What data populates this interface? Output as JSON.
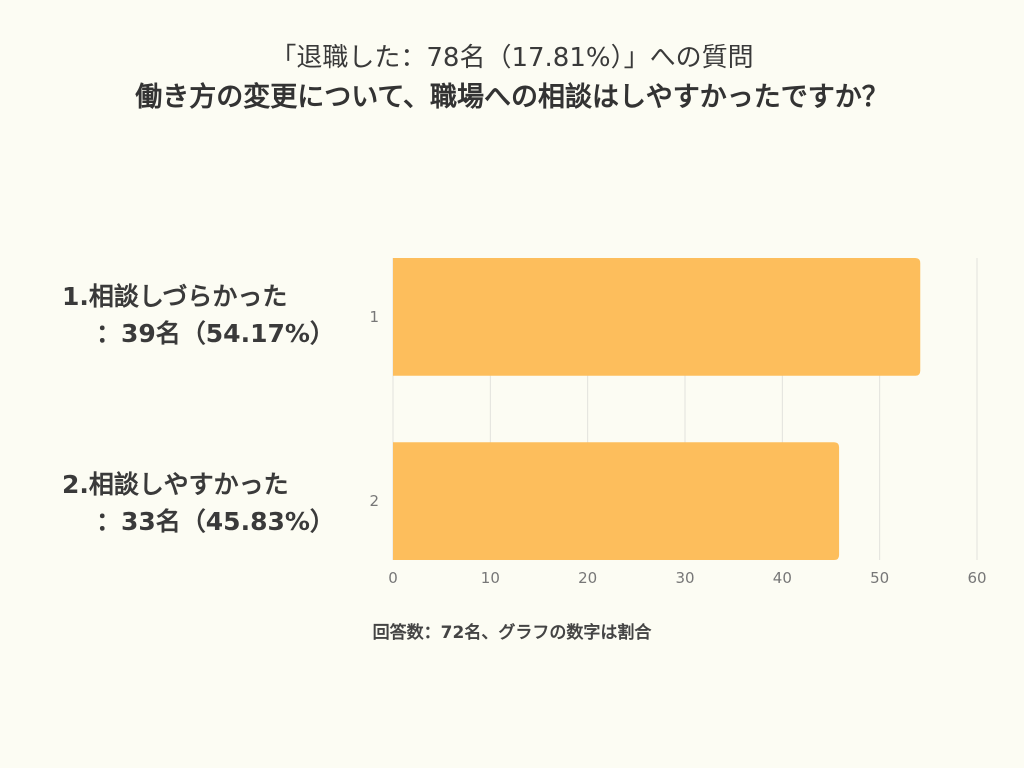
{
  "title": {
    "line1": "「退職した：78名（17.81%）」への質問",
    "line2": "働き方の変更について、職場への相談はしやすかったですか？"
  },
  "labels": [
    {
      "line1": "1.相談しづらかった",
      "line2": "：39名（54.17%）"
    },
    {
      "line1": "2.相談しやすかった",
      "line2": "：33名（45.83%）"
    }
  ],
  "footnote": "回答数：72名、グラフの数字は割合",
  "chart_data": {
    "type": "bar",
    "orientation": "horizontal",
    "categories": [
      "1",
      "2"
    ],
    "values": [
      54.17,
      45.83
    ],
    "xlim": [
      0,
      60
    ],
    "xticks": [
      0,
      10,
      20,
      30,
      40,
      50,
      60
    ],
    "grid": true,
    "bar_color": "#fdbe5c",
    "grid_color": "#e2e2dc",
    "tick_color": "#777777"
  }
}
